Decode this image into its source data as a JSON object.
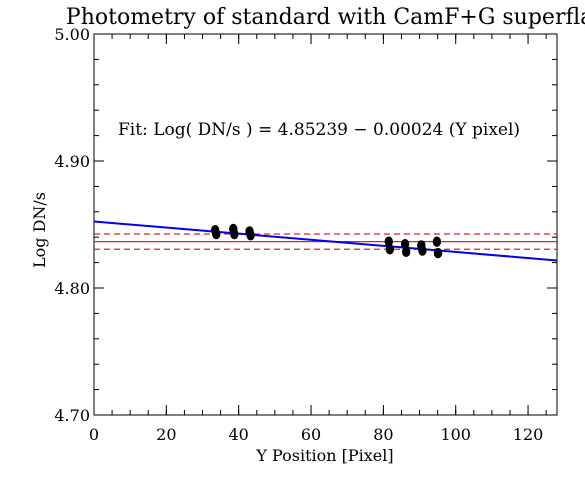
{
  "chart_data": {
    "type": "scatter",
    "title": "Photometry of standard with CamF+G superflat",
    "xlabel": "Y Position [Pixel]",
    "ylabel": "Log DN/s",
    "xlim": [
      0,
      128
    ],
    "ylim": [
      4.7,
      5.0
    ],
    "x_ticks": [
      0,
      20,
      40,
      60,
      80,
      100,
      120
    ],
    "x_tick_labels": [
      "0",
      "20",
      "40",
      "60",
      "80",
      "100",
      "120"
    ],
    "y_ticks": [
      4.7,
      4.8,
      4.9,
      5.0
    ],
    "y_tick_labels": [
      "4.70",
      "4.80",
      "4.90",
      "5.00"
    ],
    "x_minor_step": 5,
    "y_minor_step": 0.02,
    "grid": false,
    "annotation": "Fit: Log( DN/s ) = 4.85239 − 0.00024 (Y pixel)",
    "points": {
      "name": "",
      "color": "#000000",
      "x": [
        33.5,
        33.8,
        38.5,
        38.8,
        43.0,
        43.3,
        81.5,
        81.8,
        86.0,
        86.3,
        90.5,
        90.8,
        94.8,
        95.1
      ],
      "y": [
        4.8455,
        4.8425,
        4.8465,
        4.8425,
        4.8445,
        4.8415,
        4.8365,
        4.8305,
        4.8345,
        4.8285,
        4.8335,
        4.8295,
        4.8365,
        4.8275
      ]
    },
    "fit_line": {
      "intercept": 4.85239,
      "slope": -0.00024,
      "color": "#0000ee"
    },
    "reference_lines": {
      "color": "#e0202a",
      "mean": 4.8365,
      "upper": 4.8425,
      "lower": 4.8305
    }
  }
}
